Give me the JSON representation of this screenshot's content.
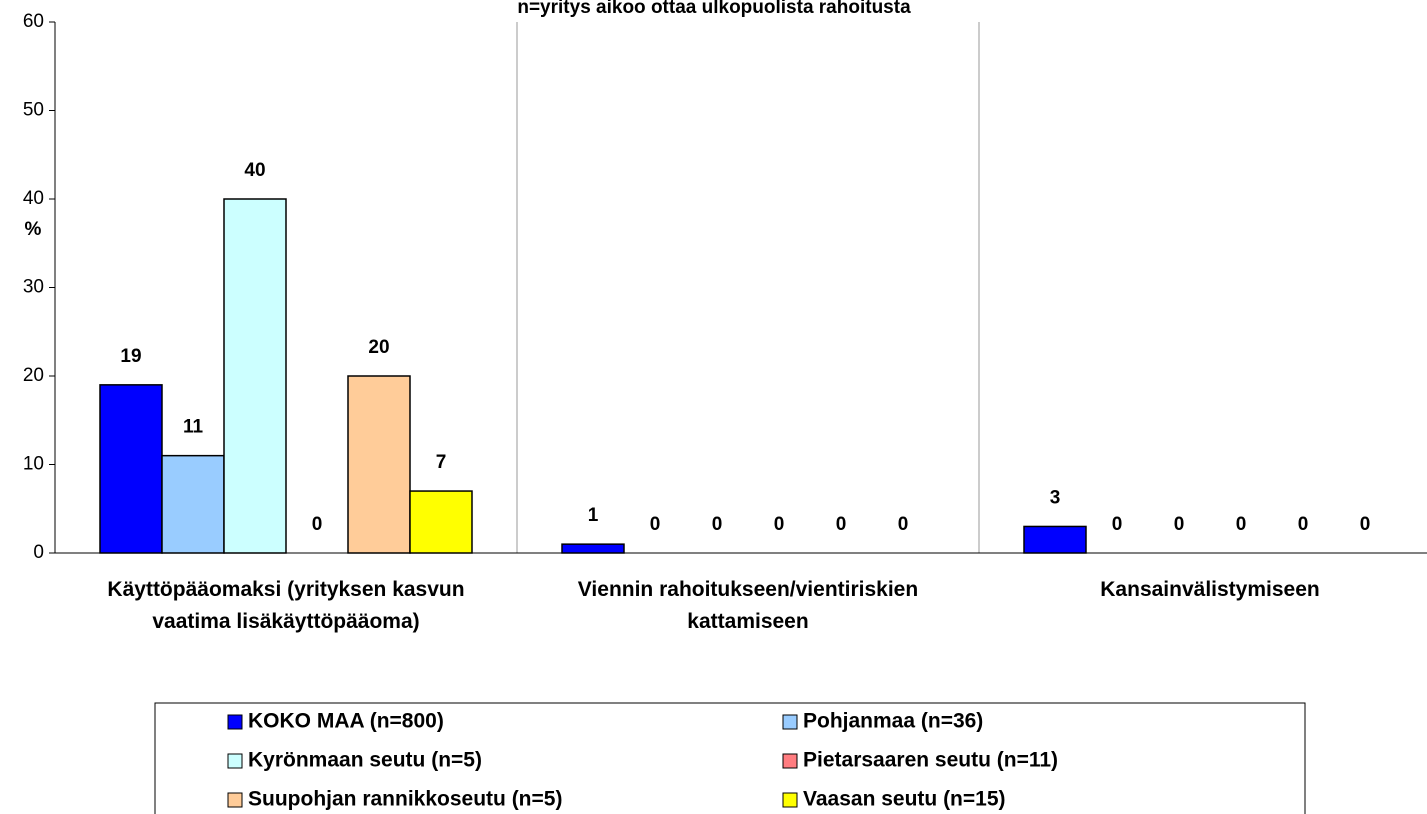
{
  "chart_data": {
    "type": "bar",
    "title": "n=yritys aikoo ottaa ulkopuolista rahoitusta",
    "ylabel": "%",
    "categories": [
      "Käyttöpääomaksi (yrityksen kasvun vaatima lisäkäyttöpääoma)",
      "Viennin rahoitukseen/vientiriskien kattamiseen",
      "Kansainvälistymiseen"
    ],
    "series": [
      {
        "name": "KOKO MAA (n=800)",
        "color": "#0000ff",
        "values": [
          19,
          1,
          3
        ]
      },
      {
        "name": "Pohjanmaa (n=36)",
        "color": "#99ccff",
        "values": [
          11,
          0,
          0
        ]
      },
      {
        "name": "Kyrönmaan seutu (n=5)",
        "color": "#ccffff",
        "values": [
          40,
          0,
          0
        ]
      },
      {
        "name": "Pietarsaaren seutu (n=11)",
        "color": "#ff7c80",
        "values": [
          0,
          0,
          0
        ]
      },
      {
        "name": "Suupohjan rannikkoseutu (n=5)",
        "color": "#ffcc99",
        "values": [
          20,
          0,
          0
        ]
      },
      {
        "name": "Vaasan seutu (n=15)",
        "color": "#ffff00",
        "values": [
          7,
          0,
          0
        ]
      }
    ],
    "ylim": [
      0,
      60
    ],
    "yticks": [
      0,
      10,
      20,
      30,
      40,
      50,
      60
    ],
    "grid": false
  }
}
